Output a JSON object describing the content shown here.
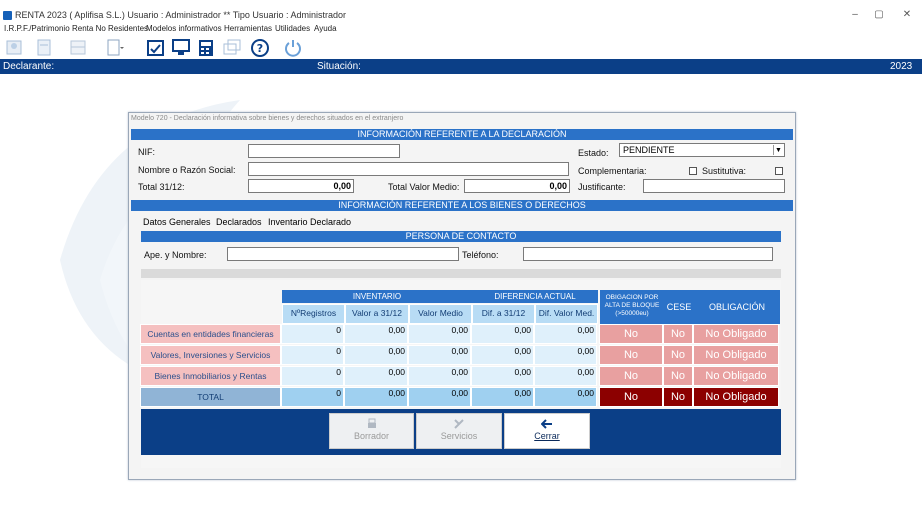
{
  "window": {
    "title": "RENTA 2023 ( Aplifisa S.L.) Usuario : Administrador  **  Tipo Usuario : Administrador",
    "controls": {
      "minimize": "–",
      "maximize": "▢",
      "close": "✕"
    }
  },
  "menu": [
    "I.R.P.F./Patrimonio",
    "Renta No Residentes",
    "Modelos informativos",
    "Herramientas",
    "Utilidades",
    "Ayuda"
  ],
  "toolbar": {
    "icons": [
      "declarant-icon",
      "document-icon",
      "grid-icon",
      "document-dropdown-icon",
      "calendar-check-icon",
      "monitor-icon",
      "calculator-icon",
      "window-icon",
      "help-icon",
      "power-icon"
    ],
    "accent": "#0b3f87"
  },
  "status": {
    "declarante": "Declarante:",
    "situacion": "Situación:",
    "year": "2023"
  },
  "dialog": {
    "title": "Modelo 720 - Declaración informativa sobre bienes y derechos situados en el extranjero",
    "section1": "INFORMACIÓN REFERENTE A LA DECLARACIÓN",
    "nif_label": "NIF:",
    "nif_value": "",
    "razon_label": "Nombre o Razón Social:",
    "razon_value": "",
    "total_label": "Total 31/12:",
    "total_value": "0,00",
    "total_medio_label": "Total Valor Medio:",
    "total_medio_value": "0,00",
    "estado_label": "Estado:",
    "estado_value": "PENDIENTE",
    "complementaria_label": "Complementaria:",
    "sustitutiva_label": "Sustitutiva:",
    "justificante_label": "Justificante:",
    "justificante_value": "",
    "section2": "INFORMACIÓN REFERENTE A LOS BIENES O DERECHOS",
    "tabs": [
      "Datos Generales",
      "Declarados",
      "Inventario Declarado"
    ],
    "section3": "PERSONA DE CONTACTO",
    "ape_label": "Ape. y Nombre:",
    "ape_value": "",
    "telefono_label": "Teléfono:",
    "telefono_value": "",
    "table": {
      "group_inventario": "INVENTARIO",
      "group_diferencia": "DIFERENCIA ACTUAL",
      "head_obligacion_bloque": "OBIGACION POR ALTA DE BLOQUE (>50000eu)",
      "head_cese": "CESE",
      "head_obligacion": "OBLIGACIÓN",
      "sub": [
        "NºRegistros",
        "Valor a 31/12",
        "Valor Medio",
        "Dif. a 31/12",
        "Dif. Valor Med."
      ],
      "rows": [
        {
          "label": "Cuentas en entidades financieras",
          "v": [
            "0",
            "0,00",
            "0,00",
            "0,00",
            "0,00"
          ],
          "obl_bloque": "No",
          "cese": "No",
          "obligacion": "No Obligado"
        },
        {
          "label": "Valores, Inversiones y Servicios",
          "v": [
            "0",
            "0,00",
            "0,00",
            "0,00",
            "0,00"
          ],
          "obl_bloque": "No",
          "cese": "No",
          "obligacion": "No Obligado"
        },
        {
          "label": "Bienes Inmobiliarios y Rentas",
          "v": [
            "0",
            "0,00",
            "0,00",
            "0,00",
            "0,00"
          ],
          "obl_bloque": "No",
          "cese": "No",
          "obligacion": "No Obligado"
        },
        {
          "label": "TOTAL",
          "v": [
            "0",
            "0,00",
            "0,00",
            "0,00",
            "0,00"
          ],
          "obl_bloque": "No",
          "cese": "No",
          "obligacion": "No Obligado"
        }
      ]
    },
    "buttons": {
      "borrador": "Borrador",
      "servicios": "Servicios",
      "cerrar": "Cerrar"
    }
  }
}
